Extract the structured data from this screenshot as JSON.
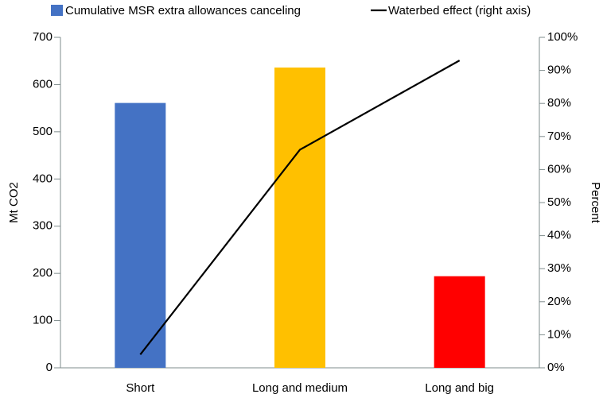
{
  "chart_data": {
    "type": "bar",
    "categories": [
      "Short",
      "Long and medium",
      "Long and big"
    ],
    "series": [
      {
        "name": "Cumulative MSR extra allowances canceling",
        "type": "bar",
        "color": "#4472c4",
        "colors": [
          "#4472c4",
          "#ffc000",
          "#ff0000"
        ],
        "values": [
          561,
          636,
          194
        ]
      },
      {
        "name": "Waterbed effect (right axis)",
        "type": "line",
        "axis": "y2",
        "color": "#000000",
        "values": [
          4,
          66,
          93
        ]
      }
    ],
    "ylabel": "Mt CO2",
    "y2label": "Percent",
    "ylim": [
      0,
      700
    ],
    "yticks": [
      0,
      100,
      200,
      300,
      400,
      500,
      600,
      700
    ],
    "y2lim": [
      0,
      100
    ],
    "y2ticks": [
      {
        "value": 0,
        "label": "0%"
      },
      {
        "value": 10,
        "label": "10%"
      },
      {
        "value": 20,
        "label": "20%"
      },
      {
        "value": 30,
        "label": "30%"
      },
      {
        "value": 40,
        "label": "40%"
      },
      {
        "value": 50,
        "label": "50%"
      },
      {
        "value": 60,
        "label": "60%"
      },
      {
        "value": 70,
        "label": "70%"
      },
      {
        "value": 80,
        "label": "80%"
      },
      {
        "value": 90,
        "label": "90%"
      },
      {
        "value": 100,
        "label": "100%"
      }
    ],
    "grid": false,
    "legend": "top"
  }
}
